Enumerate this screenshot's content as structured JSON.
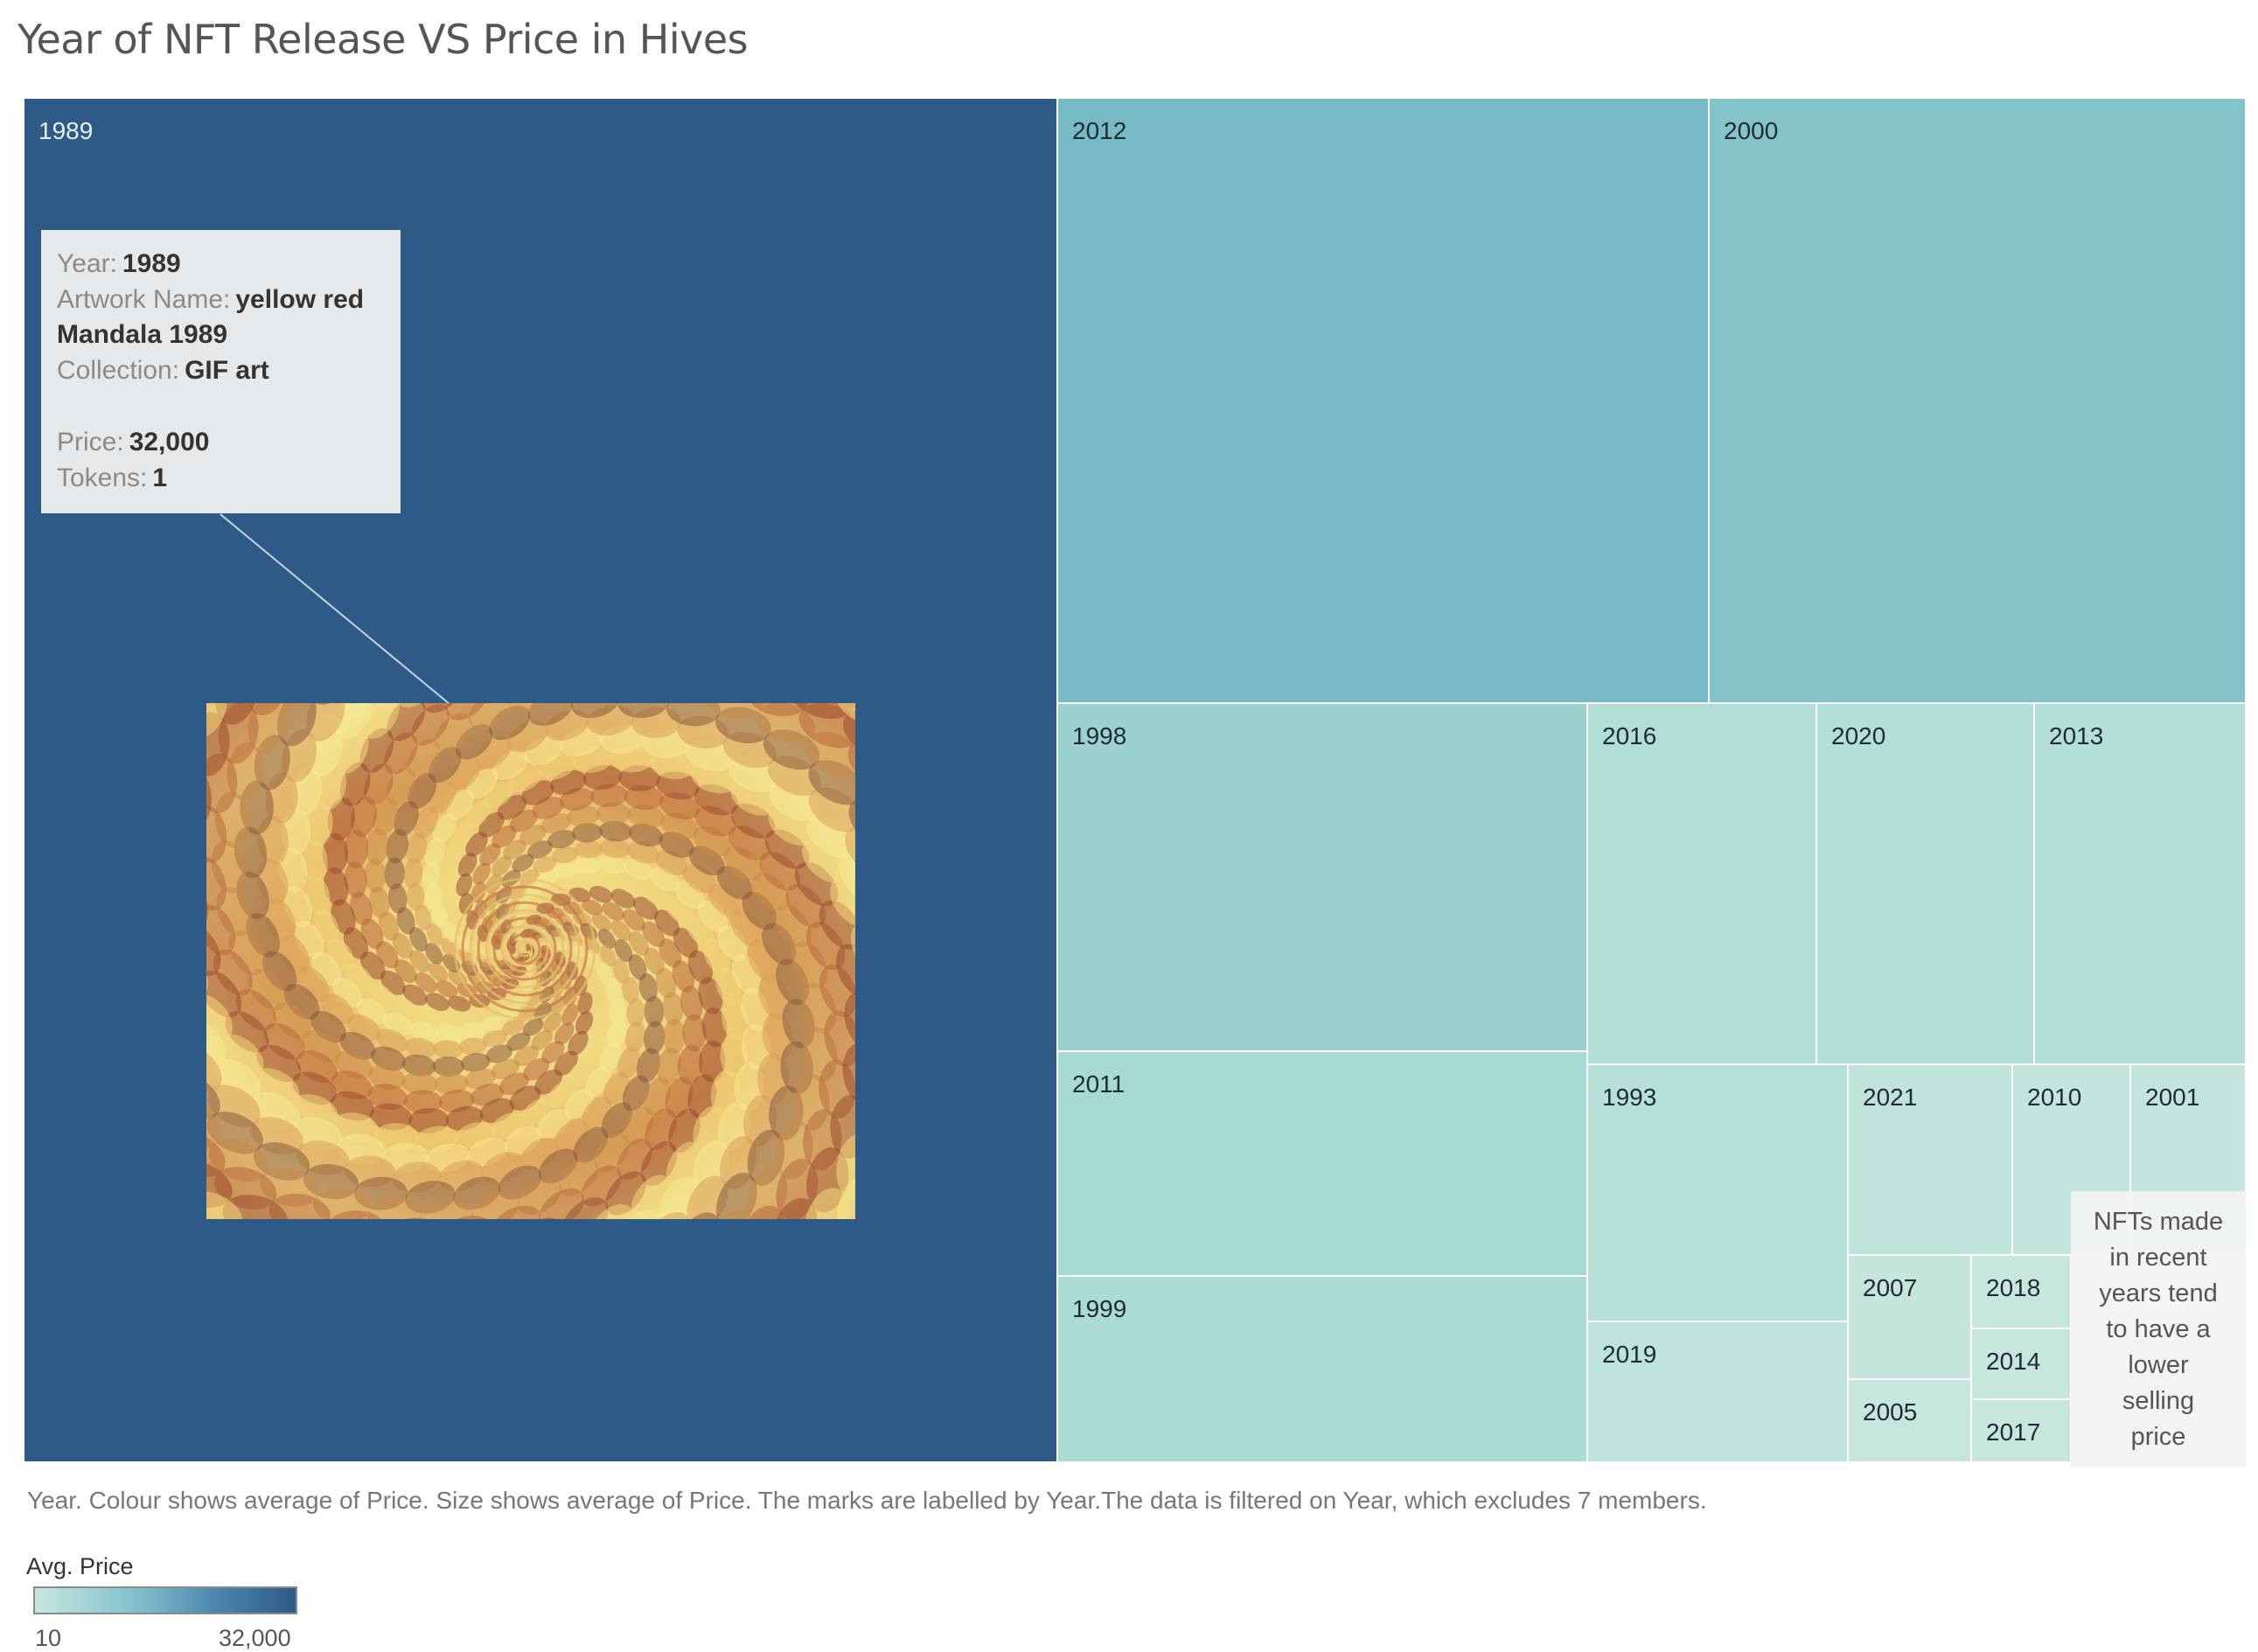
{
  "title": "Year of NFT Release VS Price in Hives",
  "caption": "Year. Colour shows average of Price. Size shows average of Price. The marks are labelled by Year.The data is filtered on Year, which excludes 7 members.",
  "legend": {
    "title": "Avg. Price",
    "min_label": "10",
    "max_label": "32,000",
    "color_low": "#c9e7df",
    "color_high": "#2e5a87"
  },
  "tooltip": {
    "year_label": "Year:",
    "year_value": "1989",
    "artwork_label": "Artwork Name:",
    "artwork_value_1": "yellow red",
    "artwork_value_2": "Mandala 1989",
    "collection_label": "Collection:",
    "collection_value": "GIF art",
    "price_label": "Price:",
    "price_value": "32,000",
    "tokens_label": "Tokens:",
    "tokens_value": "1"
  },
  "annotation": {
    "lines": [
      "NFTs made",
      "in recent",
      "years tend",
      "to have a",
      "lower",
      "selling",
      "price"
    ]
  },
  "chart_data": {
    "type": "treemap",
    "title": "Year of NFT Release VS Price in Hives",
    "size_measure": "Avg. Price",
    "color_measure": "Avg. Price",
    "color_range": [
      10,
      32000
    ],
    "labels": [
      "1989",
      "2012",
      "2000",
      "1998",
      "2016",
      "2020",
      "2013",
      "2011",
      "1999",
      "1993",
      "2019",
      "2021",
      "2010",
      "2001",
      "2007",
      "2018",
      "2005",
      "2014",
      "2017"
    ],
    "items": [
      {
        "label": "1989",
        "value": 32000
      },
      {
        "label": "2012",
        "value": 8990
      },
      {
        "label": "2000",
        "value": 7390
      },
      {
        "label": "1998",
        "value": 4400
      },
      {
        "label": "2016",
        "value": 1850
      },
      {
        "label": "2020",
        "value": 1730
      },
      {
        "label": "2013",
        "value": 1670
      },
      {
        "label": "2011",
        "value": 2810
      },
      {
        "label": "1999",
        "value": 2400
      },
      {
        "label": "1993",
        "value": 1480
      },
      {
        "label": "2019",
        "value": 860
      },
      {
        "label": "2021",
        "value": 700
      },
      {
        "label": "2010",
        "value": 450
      },
      {
        "label": "2001",
        "value": 440
      },
      {
        "label": "2007",
        "value": 350
      },
      {
        "label": "2018",
        "value": 190
      },
      {
        "label": "2005",
        "value": 240
      },
      {
        "label": "2014",
        "value": 200
      },
      {
        "label": "2017",
        "value": 180
      }
    ]
  }
}
